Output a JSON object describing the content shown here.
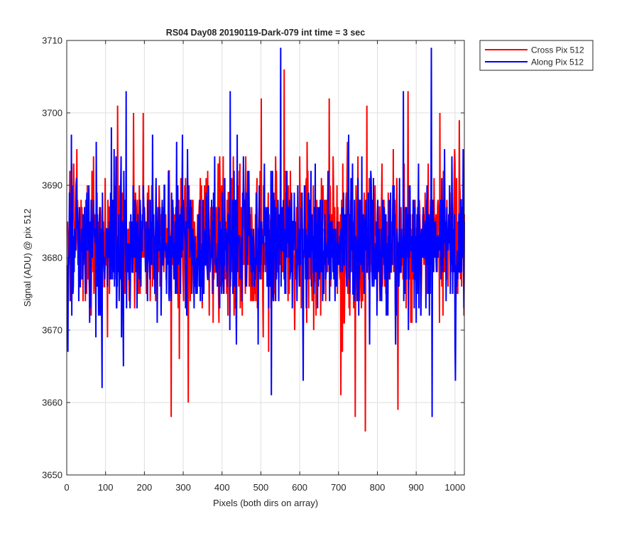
{
  "chart_data": {
    "type": "line",
    "title": "RS04 Day08 20190119-Dark-079 int time = 3 sec",
    "xlabel": "Pixels (both dirs on array)",
    "ylabel": "Signal (ADU) @ pix 512",
    "xlim": [
      0,
      1024
    ],
    "ylim": [
      3650,
      3710
    ],
    "xticks": [
      0,
      100,
      200,
      300,
      400,
      500,
      600,
      700,
      800,
      900,
      1000
    ],
    "yticks": [
      3650,
      3660,
      3670,
      3680,
      3690,
      3700,
      3710
    ],
    "grid": true,
    "legend_position": "outside-top-right",
    "series": [
      {
        "name": "Cross Pix 512",
        "color": "#ff0000",
        "noise": {
          "points": 1024,
          "mean": 3682,
          "std": 5.2,
          "seed": 17
        },
        "peaks": [
          [
            7,
            3692
          ],
          [
            25,
            3695
          ],
          [
            58,
            3673
          ],
          [
            130,
            3701
          ],
          [
            171,
            3700
          ],
          [
            196,
            3700
          ],
          [
            268,
            3658
          ],
          [
            312,
            3660
          ],
          [
            500,
            3702
          ],
          [
            559,
            3706
          ],
          [
            675,
            3702
          ],
          [
            705,
            3661
          ],
          [
            742,
            3658
          ],
          [
            768,
            3656
          ],
          [
            772,
            3701
          ],
          [
            852,
            3659
          ],
          [
            878,
            3703
          ],
          [
            960,
            3700
          ],
          [
            1010,
            3699
          ],
          [
            1022,
            3672
          ]
        ]
      },
      {
        "name": "Along Pix 512",
        "color": "#0000ff",
        "noise": {
          "points": 1024,
          "mean": 3682,
          "std": 5.0,
          "seed": 41
        },
        "peaks": [
          [
            2,
            3667
          ],
          [
            11,
            3697
          ],
          [
            90,
            3662
          ],
          [
            152,
            3703
          ],
          [
            220,
            3697
          ],
          [
            297,
            3697
          ],
          [
            310,
            3695
          ],
          [
            420,
            3703
          ],
          [
            550,
            3709
          ],
          [
            526,
            3661
          ],
          [
            608,
            3663
          ],
          [
            725,
            3697
          ],
          [
            866,
            3703
          ],
          [
            938,
            3709
          ],
          [
            940,
            3658
          ],
          [
            1000,
            3663
          ],
          [
            1020,
            3695
          ]
        ]
      }
    ]
  }
}
